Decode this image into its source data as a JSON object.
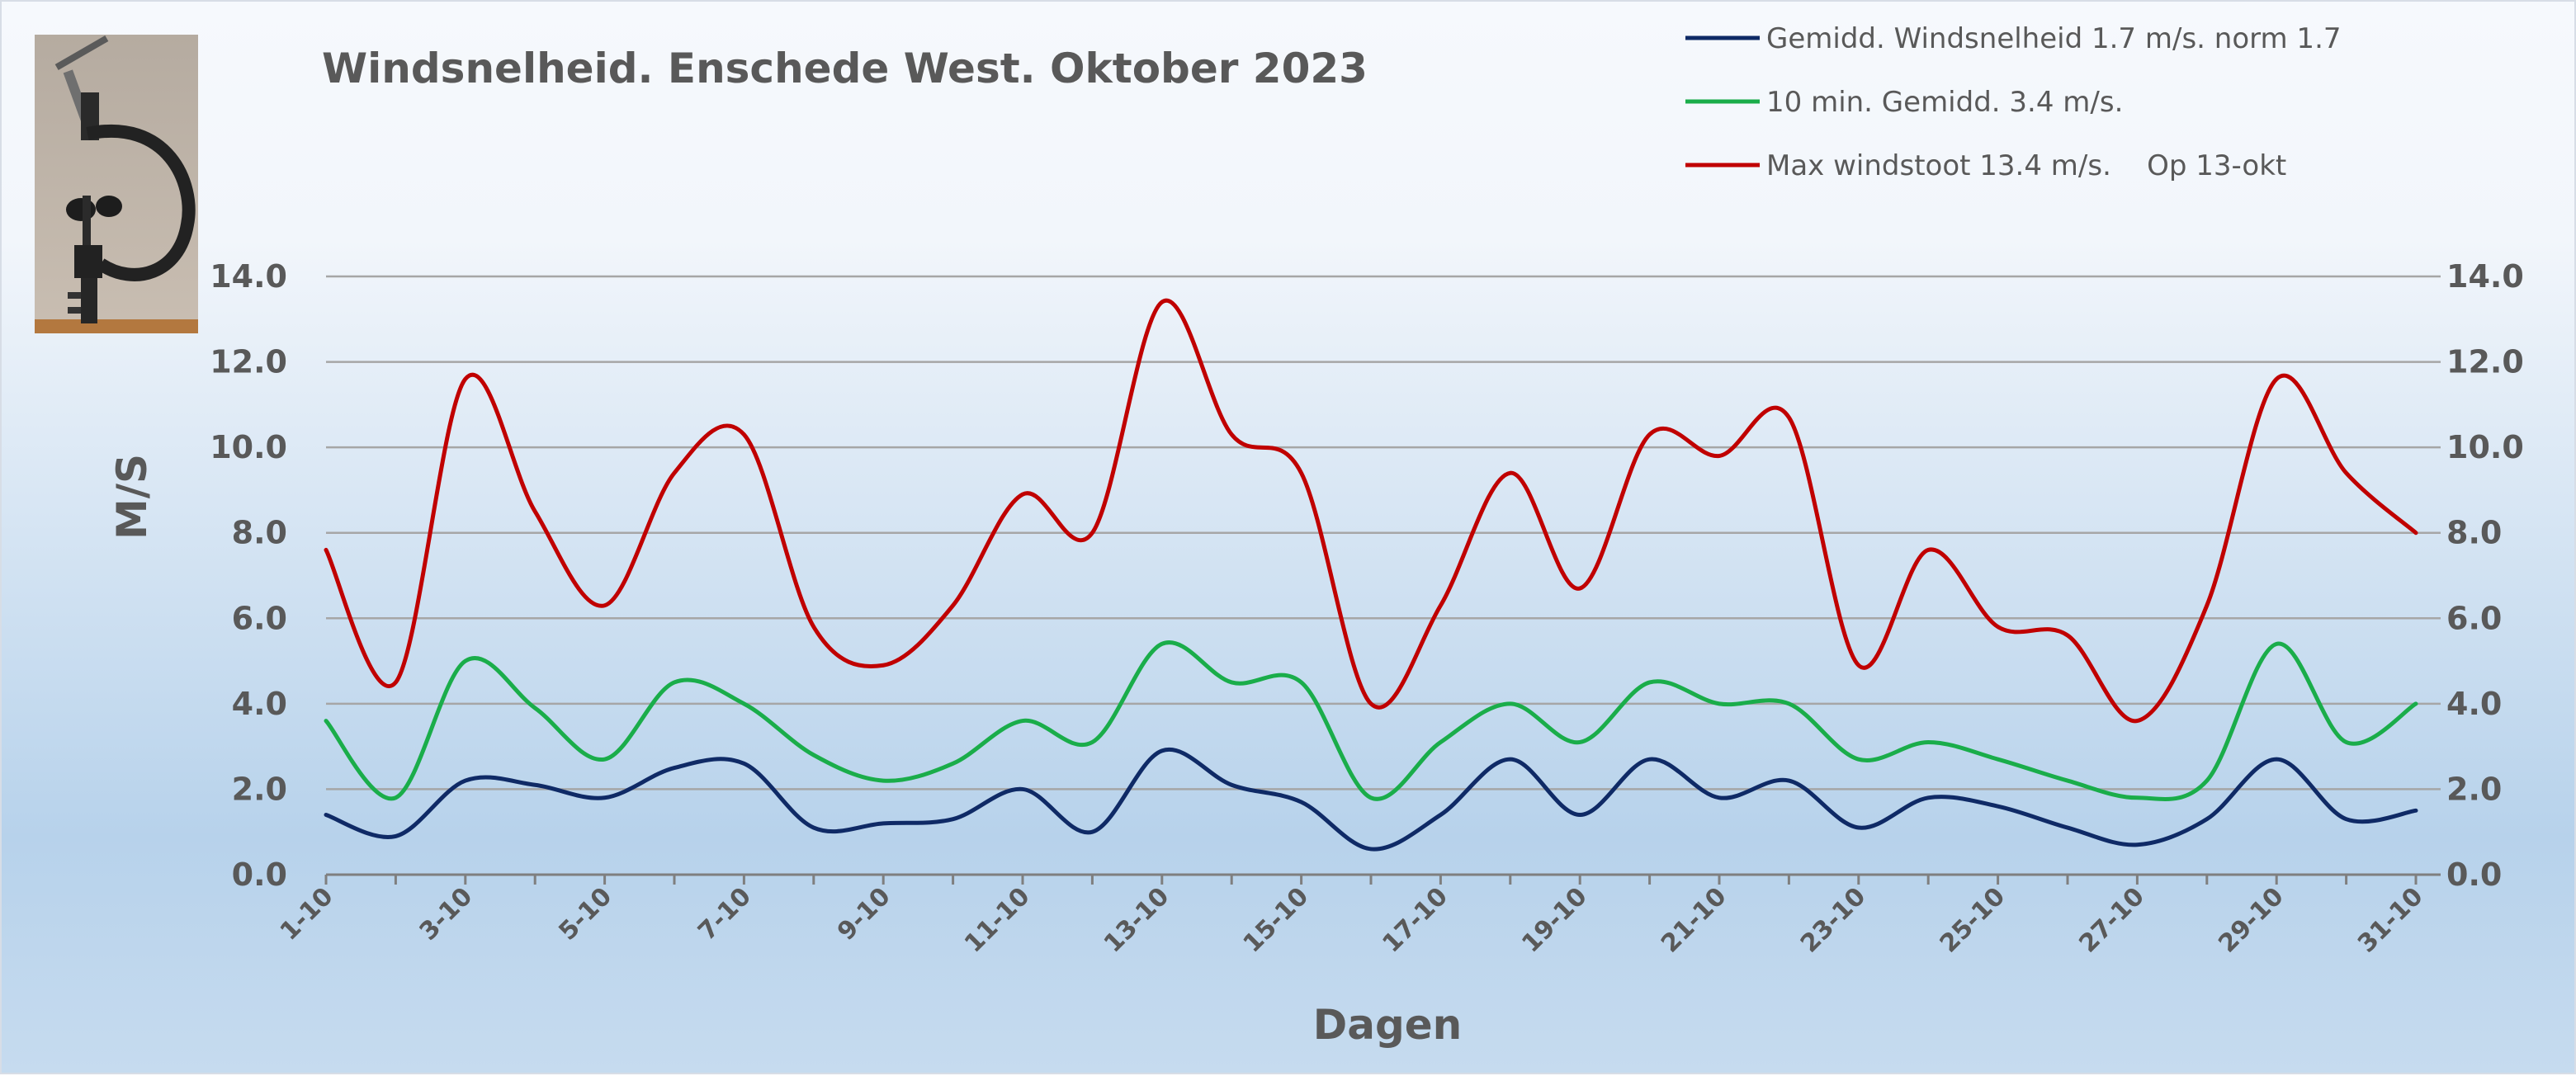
{
  "chart_data": {
    "type": "line",
    "title": "Windsnelheid. Enschede West. Oktober 2023",
    "xlabel": "Dagen",
    "ylabel": "M/S",
    "ylim": [
      0,
      14
    ],
    "y_ticks": [
      "0.0",
      "2.0",
      "4.0",
      "6.0",
      "8.0",
      "10.0",
      "12.0",
      "14.0"
    ],
    "grid": true,
    "legend_position": "top-right",
    "x": [
      "1-10",
      "2-10",
      "3-10",
      "4-10",
      "5-10",
      "6-10",
      "7-10",
      "8-10",
      "9-10",
      "10-10",
      "11-10",
      "12-10",
      "13-10",
      "14-10",
      "15-10",
      "16-10",
      "17-10",
      "18-10",
      "19-10",
      "20-10",
      "21-10",
      "22-10",
      "23-10",
      "24-10",
      "25-10",
      "26-10",
      "27-10",
      "28-10",
      "29-10",
      "30-10",
      "31-10"
    ],
    "x_tick_labels": [
      "1-10",
      "3-10",
      "5-10",
      "7-10",
      "9-10",
      "11-10",
      "13-10",
      "15-10",
      "17-10",
      "19-10",
      "21-10",
      "23-10",
      "25-10",
      "27-10",
      "29-10",
      "31-10"
    ],
    "series": [
      {
        "name": "Gemidd. Windsnelheid 1.7 m/s. norm 1.7",
        "color": "#0f2a66",
        "values": [
          1.4,
          0.9,
          2.2,
          2.1,
          1.8,
          2.5,
          2.6,
          1.1,
          1.2,
          1.3,
          2.0,
          1.0,
          2.9,
          2.1,
          1.7,
          0.6,
          1.4,
          2.7,
          1.4,
          2.7,
          1.8,
          2.2,
          1.1,
          1.8,
          1.6,
          1.1,
          0.7,
          1.3,
          2.7,
          1.3,
          1.5
        ]
      },
      {
        "name": "10 min. Gemidd. 3.4 m/s.",
        "color": "#1aad4a",
        "values": [
          3.6,
          1.8,
          5.0,
          3.9,
          2.7,
          4.5,
          4.0,
          2.8,
          2.2,
          2.6,
          3.6,
          3.1,
          5.4,
          4.5,
          4.5,
          1.8,
          3.1,
          4.0,
          3.1,
          4.5,
          4.0,
          4.0,
          2.7,
          3.1,
          2.7,
          2.2,
          1.8,
          2.2,
          5.4,
          3.1,
          4.0
        ]
      },
      {
        "name": "Max windstoot 13.4 m/s.    Op 13-okt",
        "color": "#c00000",
        "values": [
          7.6,
          4.5,
          11.6,
          8.5,
          6.3,
          9.4,
          10.3,
          5.8,
          4.9,
          6.3,
          8.9,
          8.0,
          13.4,
          10.3,
          9.4,
          4.0,
          6.3,
          9.4,
          6.7,
          10.3,
          9.8,
          10.7,
          4.9,
          7.6,
          5.8,
          5.6,
          3.6,
          6.3,
          11.6,
          9.4,
          8.0
        ]
      }
    ]
  },
  "decor": {
    "photo": "anemometer-photo"
  }
}
